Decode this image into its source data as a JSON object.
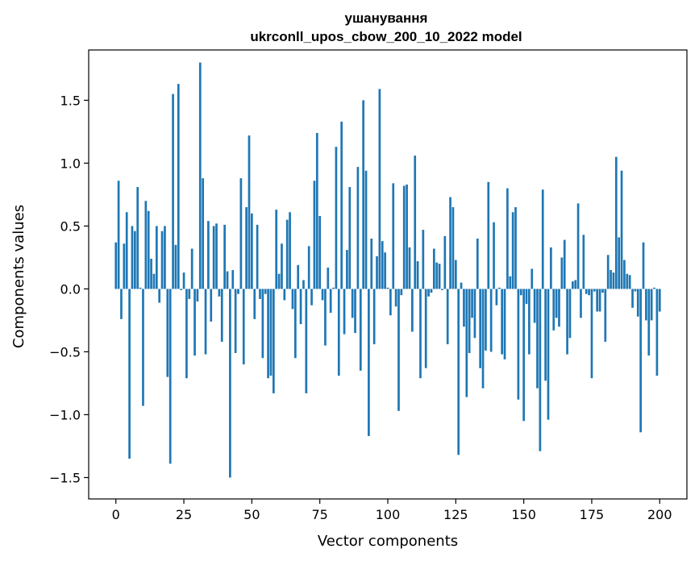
{
  "chart_data": {
    "type": "bar",
    "title": "ушанування",
    "subtitle": "ukrconll_upos_cbow_200_10_2022 model",
    "xlabel": "Vector components",
    "ylabel": "Components values",
    "xlim": [
      -10,
      210
    ],
    "ylim": [
      -1.67,
      1.9
    ],
    "xticks": [
      0,
      25,
      50,
      75,
      100,
      125,
      150,
      175,
      200
    ],
    "yticks": [
      -1.5,
      -1.0,
      -0.5,
      0.0,
      0.5,
      1.0,
      1.5
    ],
    "ytick_labels": [
      "−1.5",
      "−1.0",
      "−0.5",
      "0.0",
      "0.5",
      "1.0",
      "1.5"
    ],
    "grid": false,
    "color": "#1f77b4",
    "values": [
      0.37,
      0.86,
      -0.24,
      0.36,
      0.61,
      -1.35,
      0.5,
      0.46,
      0.81,
      0.01,
      -0.93,
      0.7,
      0.62,
      0.24,
      0.12,
      0.5,
      -0.11,
      0.46,
      0.5,
      -0.7,
      -1.39,
      1.55,
      0.35,
      1.63,
      -0.01,
      0.13,
      -0.71,
      -0.08,
      0.32,
      -0.53,
      -0.1,
      1.8,
      0.88,
      -0.52,
      0.54,
      -0.26,
      0.5,
      0.52,
      -0.06,
      -0.42,
      0.51,
      0.14,
      -1.5,
      0.15,
      -0.51,
      -0.04,
      0.88,
      -0.6,
      0.65,
      1.22,
      0.6,
      -0.24,
      0.51,
      -0.08,
      -0.55,
      -0.04,
      -0.71,
      -0.69,
      -0.83,
      0.63,
      0.12,
      0.36,
      -0.09,
      0.55,
      0.61,
      -0.16,
      -0.55,
      0.19,
      -0.28,
      0.07,
      -0.83,
      0.34,
      -0.13,
      0.86,
      1.24,
      0.58,
      -0.09,
      -0.45,
      0.17,
      -0.19,
      0.01,
      1.13,
      -0.69,
      1.33,
      -0.36,
      0.31,
      0.81,
      -0.23,
      -0.35,
      0.97,
      -0.65,
      1.5,
      0.94,
      -1.17,
      0.4,
      -0.44,
      0.26,
      1.59,
      0.38,
      0.29,
      0.01,
      -0.21,
      0.84,
      -0.14,
      -0.97,
      -0.05,
      0.82,
      0.83,
      0.33,
      -0.34,
      1.06,
      0.22,
      -0.71,
      0.47,
      -0.63,
      -0.06,
      -0.03,
      0.32,
      0.21,
      0.2,
      -0.01,
      0.42,
      -0.44,
      0.73,
      0.65,
      0.23,
      -1.32,
      0.05,
      -0.3,
      -0.86,
      -0.51,
      -0.23,
      -0.39,
      0.4,
      -0.63,
      -0.79,
      -0.49,
      0.85,
      -0.5,
      0.53,
      -0.13,
      0.01,
      -0.52,
      -0.56,
      0.8,
      0.1,
      0.61,
      0.65,
      -0.88,
      -0.05,
      -1.05,
      -0.12,
      -0.52,
      0.16,
      -0.27,
      -0.79,
      -1.29,
      0.79,
      -0.73,
      -1.04,
      0.33,
      -0.33,
      -0.23,
      -0.3,
      0.25,
      0.39,
      -0.52,
      -0.39,
      0.06,
      0.07,
      0.68,
      -0.23,
      0.43,
      -0.04,
      -0.05,
      -0.71,
      -0.02,
      -0.18,
      -0.18,
      -0.03,
      -0.42,
      0.27,
      0.15,
      0.13,
      1.05,
      0.41,
      0.94,
      0.23,
      0.12,
      0.11,
      -0.15,
      -0.02,
      -0.22,
      -1.14,
      0.37,
      -0.25,
      -0.53,
      -0.25,
      0.01,
      -0.69,
      -0.18
    ]
  }
}
